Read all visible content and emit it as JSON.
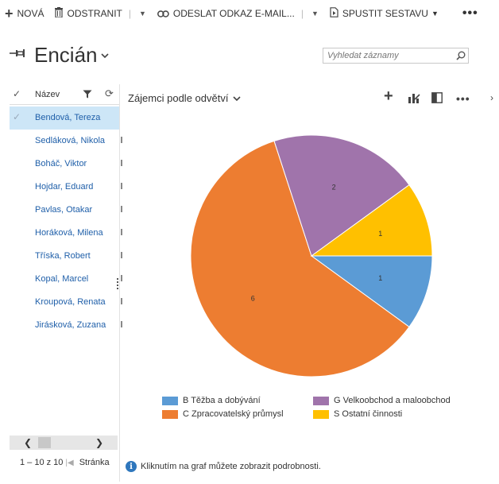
{
  "toolbar": {
    "new_label": "NOVÁ",
    "delete_label": "ODSTRANIT",
    "email_link_label": "ODESLAT ODKAZ E-MAIL...",
    "run_report_label": "SPUSTIT SESTAVU",
    "more": "•••"
  },
  "header": {
    "title": "Encián",
    "search_placeholder": "Vyhledat záznamy"
  },
  "grid": {
    "column_name": "Název",
    "rows": [
      "Bendová, Tereza",
      "Sedláková, Nikola",
      "Boháč, Viktor",
      "Hojdar, Eduard",
      "Pavlas, Otakar",
      "Horáková, Milena",
      "Tříska, Robert",
      "Kopal, Marcel",
      "Kroupová, Renata",
      "Jirásková, Zuzana"
    ],
    "pager_range": "1 – 10",
    "pager_of": "z 10",
    "pager_page": "Stránka"
  },
  "chart": {
    "title": "Zájemci podle odvětví",
    "info_text": "Kliknutím na graf můžete zobrazit podrobnosti."
  },
  "chart_data": {
    "type": "pie",
    "title": "Zájemci podle odvětví",
    "categories": [
      "B Těžba a dobývání",
      "C Zpracovatelský průmysl",
      "G Velkoobchod a maloobchod",
      "S Ostatní činnosti"
    ],
    "values": [
      1,
      6,
      2,
      1
    ],
    "colors": [
      "#5b9bd5",
      "#ed7d31",
      "#a074ab",
      "#ffc000"
    ],
    "legend_position": "bottom"
  }
}
